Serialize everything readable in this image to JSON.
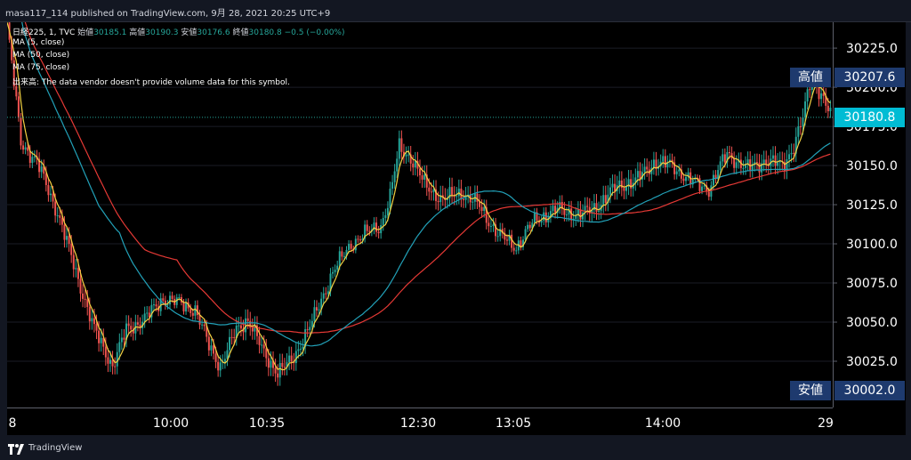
{
  "header": {
    "published": "masa117_114 published on TradingView.com, 9月 28, 2021 20:25 UTC+9"
  },
  "legend": {
    "symbol": "日経225, 1, TVC",
    "open_label": "始値",
    "open_value": "30185.1",
    "high_label": "高値",
    "high_value": "30190.3",
    "low_label": "安値",
    "low_value": "30176.6",
    "close_label": "終値",
    "close_value": "30180.8",
    "change": "−0.5 (−0.00%)",
    "ma5": "MA (5, close)",
    "ma50": "MA (50, close)",
    "ma75": "MA (75, close)",
    "volume_label": "出来高:",
    "volume_note": "The data vendor doesn't provide volume data for this symbol."
  },
  "price_scale": {
    "ticks": [
      "30225.0",
      "30200.0",
      "30175.0",
      "30150.0",
      "30125.0",
      "30100.0",
      "30075.0",
      "30050.0",
      "30025.0"
    ],
    "high_label": "高値",
    "high_value": "30207.6",
    "last_value": "30180.8",
    "low_label": "安値",
    "low_value": "30002.0"
  },
  "time_axis": {
    "labels": [
      "8",
      "10:00",
      "10:35",
      "12:30",
      "13:05",
      "14:00",
      "29"
    ]
  },
  "colors": {
    "up": "#26a69a",
    "down": "#ef5350",
    "ma5": "#f5d142",
    "ma50": "#22a1b8",
    "ma75": "#e53935",
    "last_price_bg": "#00bcd4",
    "badge": "#1e3a6e"
  },
  "footer": {
    "brand": "TradingView",
    "logo_icon": "tradingview-logo-icon"
  },
  "chart_data": {
    "type": "candlestick",
    "ylim": [
      30002.0,
      30235.0
    ],
    "high": 30207.6,
    "low": 30002.0,
    "last": 30180.8,
    "anchors": [
      [
        0,
        30240
      ],
      [
        6,
        30165
      ],
      [
        13,
        30152
      ],
      [
        22,
        30120
      ],
      [
        30,
        30082
      ],
      [
        38,
        30045
      ],
      [
        46,
        30022
      ],
      [
        52,
        30045
      ],
      [
        60,
        30052
      ],
      [
        68,
        30065
      ],
      [
        75,
        30062
      ],
      [
        82,
        30058
      ],
      [
        88,
        30035
      ],
      [
        93,
        30022
      ],
      [
        100,
        30045
      ],
      [
        105,
        30052
      ],
      [
        112,
        30030
      ],
      [
        118,
        30018
      ],
      [
        124,
        30025
      ],
      [
        133,
        30050
      ],
      [
        142,
        30082
      ],
      [
        150,
        30100
      ],
      [
        158,
        30108
      ],
      [
        163,
        30112
      ],
      [
        167,
        30130
      ],
      [
        171,
        30162
      ],
      [
        176,
        30155
      ],
      [
        182,
        30138
      ],
      [
        190,
        30128
      ],
      [
        198,
        30133
      ],
      [
        206,
        30124
      ],
      [
        214,
        30106
      ],
      [
        222,
        30098
      ],
      [
        230,
        30115
      ],
      [
        240,
        30122
      ],
      [
        250,
        30118
      ],
      [
        258,
        30125
      ],
      [
        266,
        30137
      ],
      [
        274,
        30140
      ],
      [
        282,
        30152
      ],
      [
        290,
        30150
      ],
      [
        298,
        30140
      ],
      [
        306,
        30135
      ],
      [
        314,
        30158
      ],
      [
        322,
        30148
      ],
      [
        330,
        30153
      ],
      [
        338,
        30150
      ],
      [
        343,
        30162
      ],
      [
        347,
        30180
      ],
      [
        350,
        30203
      ],
      [
        352,
        30205
      ],
      [
        355,
        30195
      ],
      [
        358,
        30185
      ],
      [
        360,
        30181
      ]
    ]
  }
}
